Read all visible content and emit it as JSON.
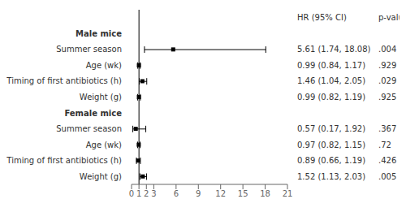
{
  "chart_data": {
    "type": "forest",
    "column_headers": [
      "HR (95% CI)",
      "p-value"
    ],
    "groups": [
      {
        "name": "Male mice",
        "categories": [
          "Summer season",
          "Age (wk)",
          "Timing of first antibiotics (h)",
          "Weight (g)"
        ],
        "values": [
          5.61,
          0.99,
          1.46,
          0.99
        ],
        "ci_lo": [
          1.74,
          0.84,
          1.04,
          0.82
        ],
        "ci_hi": [
          18.08,
          1.17,
          2.05,
          1.19
        ],
        "value_labels": [
          "5.61 (1.74, 18.08)",
          "0.99 (0.84, 1.17)",
          "1.46 (1.04, 2.05)",
          "0.99 (0.82, 1.19)"
        ],
        "p_values": [
          ".004",
          ".929",
          ".029",
          ".925"
        ]
      },
      {
        "name": "Female mice",
        "categories": [
          "Summer season",
          "Age (wk)",
          "Timing of first antibiotics (h)",
          "Weight (g)"
        ],
        "values": [
          0.57,
          0.97,
          0.89,
          1.52
        ],
        "ci_lo": [
          0.17,
          0.82,
          0.66,
          1.13
        ],
        "ci_hi": [
          1.92,
          1.15,
          1.19,
          2.03
        ],
        "value_labels": [
          "0.57 (0.17, 1.92)",
          "0.97 (0.82, 1.15)",
          "0.89 (0.66, 1.19)",
          "1.52 (1.13, 2.03)"
        ],
        "p_values": [
          ".367",
          ".72",
          ".426",
          ".005"
        ]
      }
    ],
    "xlim": [
      0,
      21
    ],
    "xticks": [
      0,
      1,
      2,
      3,
      6,
      9,
      12,
      15,
      18,
      21
    ],
    "vline": 1,
    "color": "#000000",
    "grid": false
  }
}
